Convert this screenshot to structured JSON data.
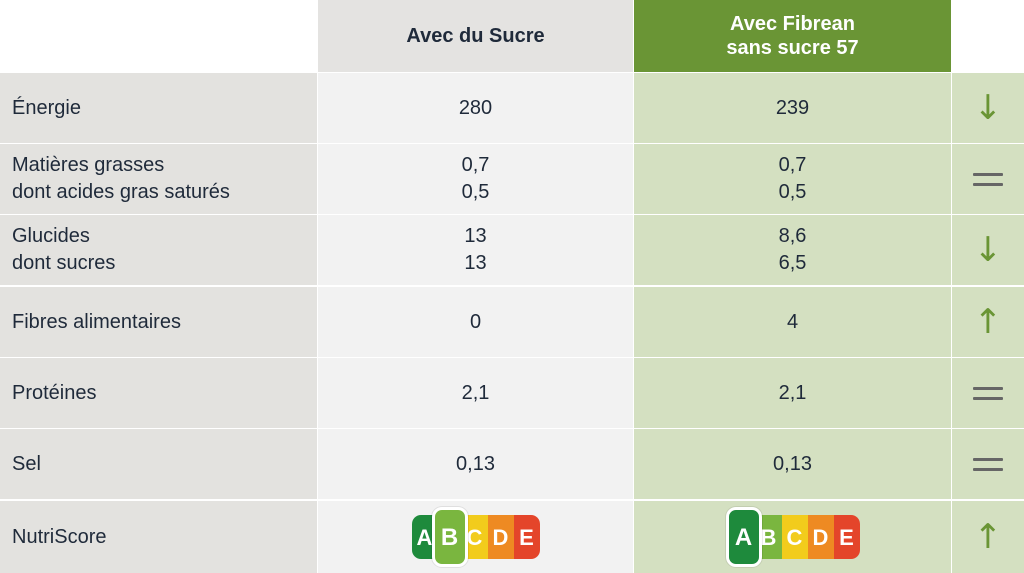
{
  "header": {
    "col_sugar": "Avec du Sucre",
    "col_fibrean_line1": "Avec Fibrean",
    "col_fibrean_line2": "sans sucre 57"
  },
  "rows": [
    {
      "label": [
        "Énergie"
      ],
      "sugar": [
        "280"
      ],
      "fibrean": [
        "239"
      ],
      "indicator": "arrow-down"
    },
    {
      "label": [
        "Matières grasses",
        "dont acides gras saturés"
      ],
      "sugar": [
        "0,7",
        "0,5"
      ],
      "fibrean": [
        "0,7",
        "0,5"
      ],
      "indicator": "equal"
    },
    {
      "label": [
        "Glucides",
        "dont sucres"
      ],
      "sugar": [
        "13",
        "13"
      ],
      "fibrean": [
        "8,6",
        "6,5"
      ],
      "indicator": "arrow-down"
    },
    {
      "label": [
        "Fibres alimentaires"
      ],
      "sugar": [
        "0"
      ],
      "fibrean": [
        "4"
      ],
      "indicator": "arrow-up"
    },
    {
      "label": [
        "Protéines"
      ],
      "sugar": [
        "2,1"
      ],
      "fibrean": [
        "2,1"
      ],
      "indicator": "equal"
    },
    {
      "label": [
        "Sel"
      ],
      "sugar": [
        "0,13"
      ],
      "fibrean": [
        "0,13"
      ],
      "indicator": "equal"
    }
  ],
  "nutriscore": {
    "label": "NutriScore",
    "letters": [
      "A",
      "B",
      "C",
      "D",
      "E"
    ],
    "sugar_grade": "B",
    "fibrean_grade": "A",
    "indicator": "arrow-up"
  },
  "icons": {
    "arrow_down": "↓",
    "arrow_up": "↑"
  },
  "colors": {
    "accent_green": "#6a9535",
    "A": "#1e8a3c",
    "B": "#7ab63f",
    "C": "#f2cc1c",
    "D": "#ee8a22",
    "E": "#e4452a"
  }
}
